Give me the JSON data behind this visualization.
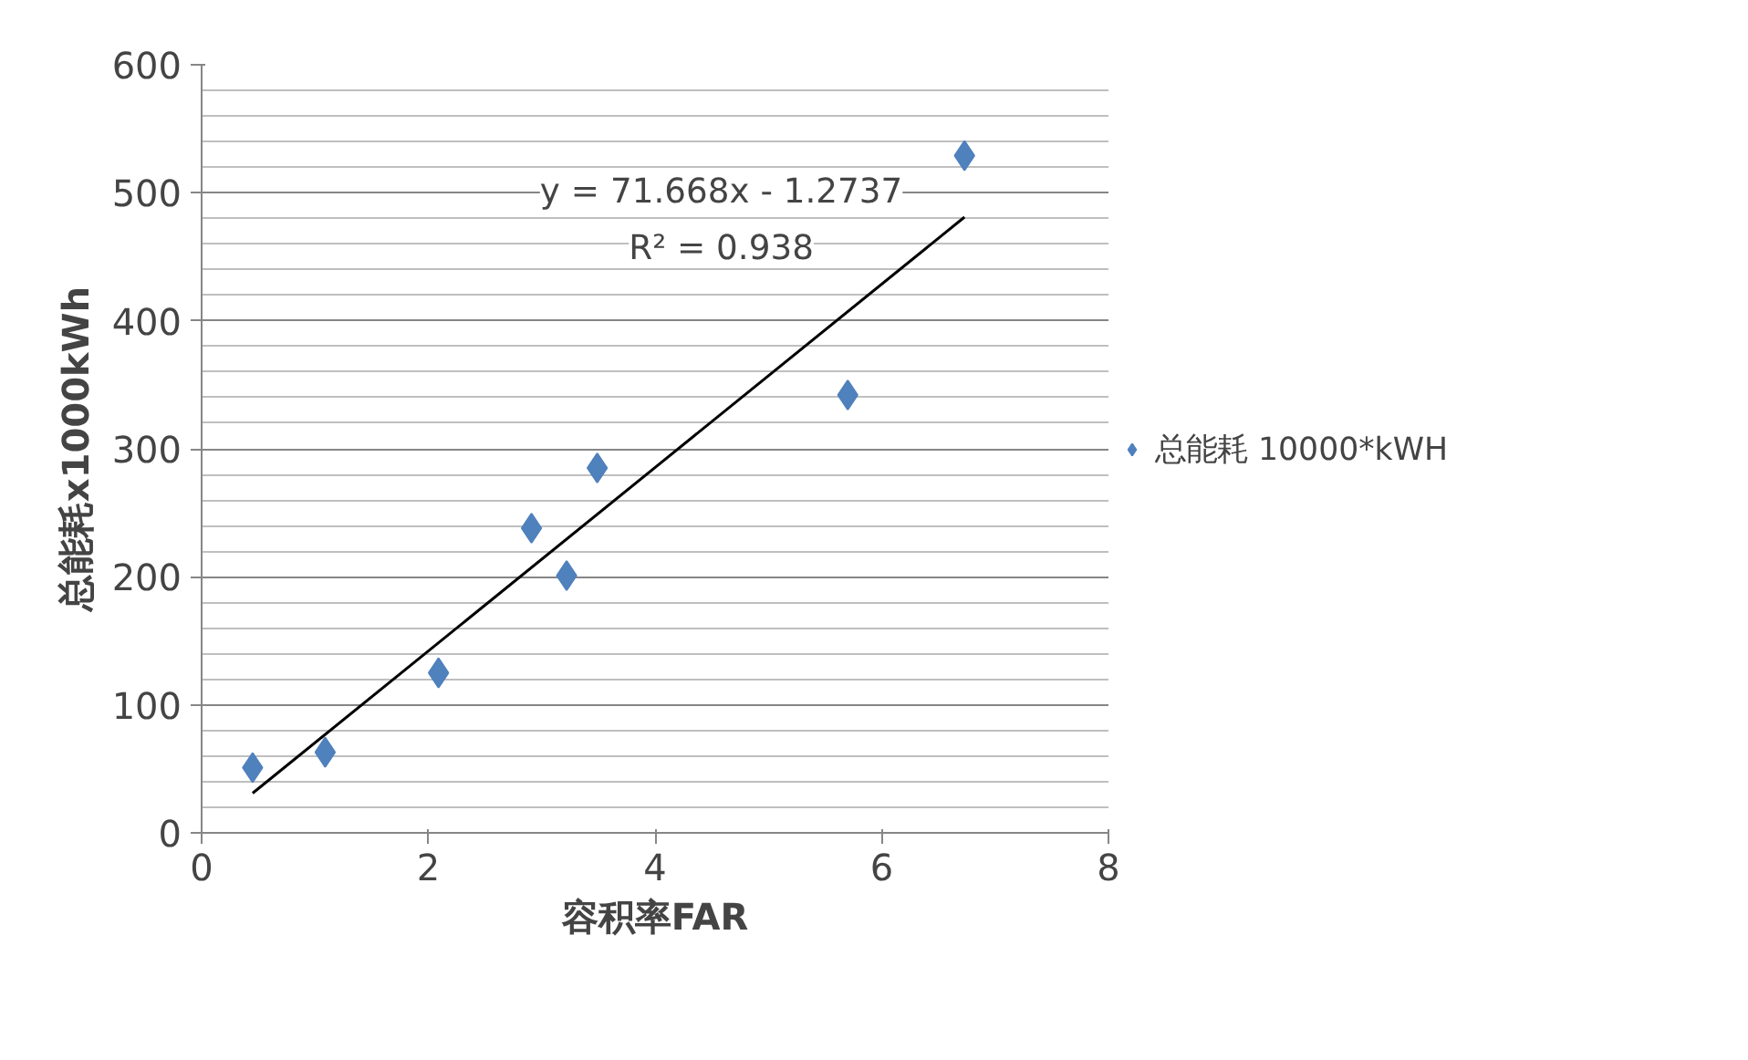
{
  "chart_data": {
    "type": "scatter",
    "xlabel": "容积率FAR",
    "ylabel": "总能耗x1000kWh",
    "xlim": [
      0,
      8
    ],
    "xticks": [
      0,
      2,
      4,
      6,
      8
    ],
    "ylim": [
      0,
      600
    ],
    "yticks": [
      0,
      100,
      200,
      300,
      400,
      500,
      600
    ],
    "grid": "y",
    "legend": "right",
    "annotations": [
      "y = 71.668x - 1.2737",
      "R² = 0.938"
    ],
    "series": [
      {
        "name": "总能耗 10000*kWH",
        "marker": "diamond",
        "color": "#4f81bd",
        "x": [
          0.45,
          1.09,
          2.09,
          2.91,
          3.22,
          3.49,
          5.7,
          6.73
        ],
        "values": [
          51,
          63,
          125,
          238,
          201,
          285,
          342,
          529
        ]
      },
      {
        "type": "line",
        "marker": "none",
        "color": "#000000",
        "x": [
          0.45,
          6.73
        ],
        "values": [
          31,
          481
        ]
      }
    ]
  }
}
